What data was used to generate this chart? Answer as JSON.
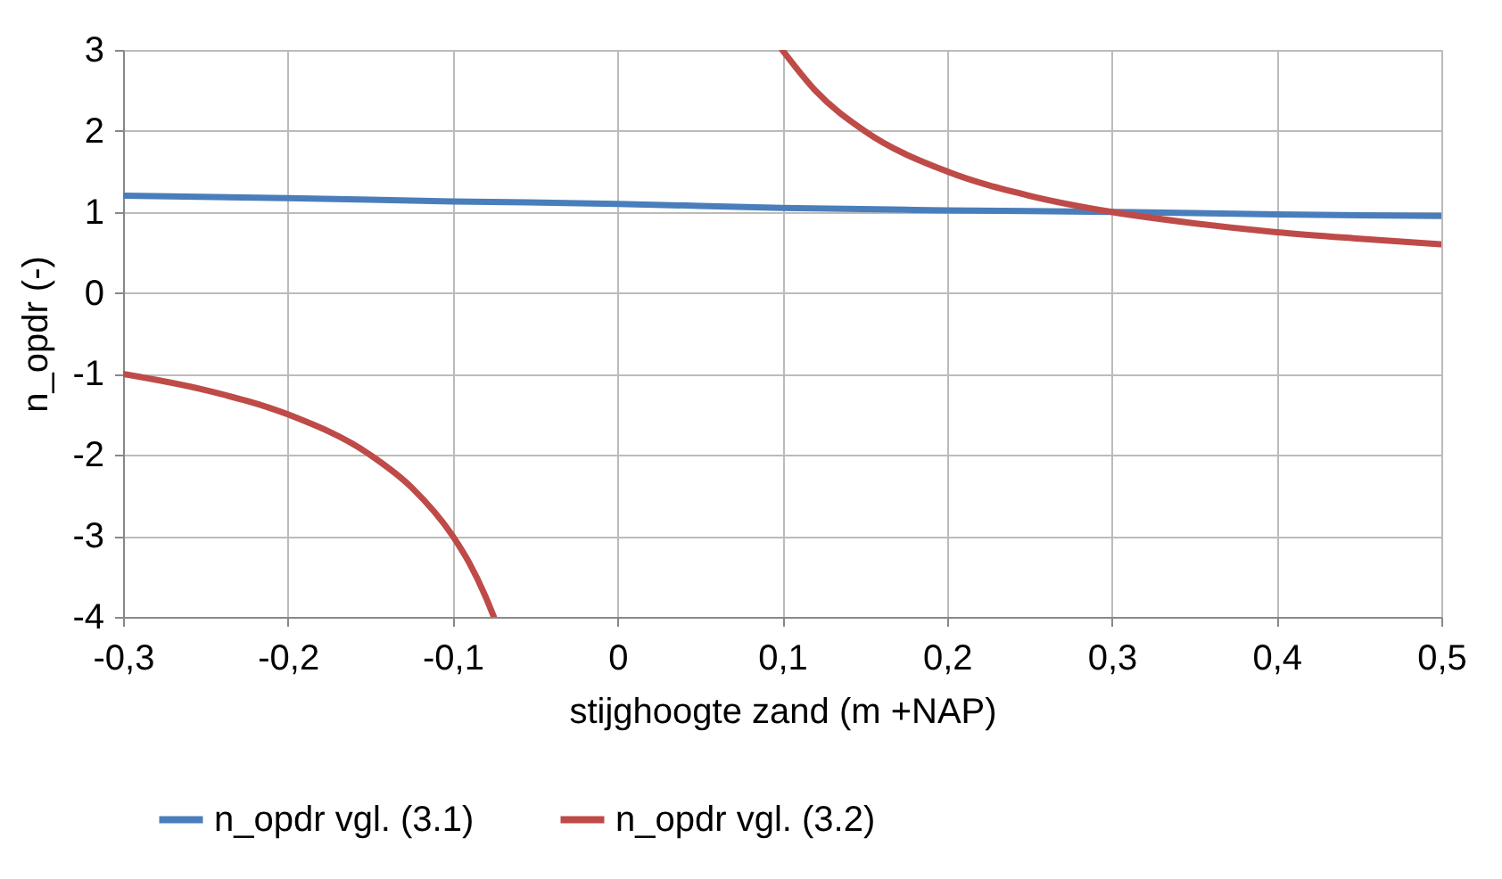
{
  "chart_data": {
    "type": "line",
    "xlabel": "stijghoogte zand (m +NAP)",
    "ylabel": "n_opdr (-)",
    "xlim": [
      -0.3,
      0.5
    ],
    "xticks": [
      {
        "value": -0.3,
        "label": "-0,3"
      },
      {
        "value": -0.2,
        "label": "-0,2"
      },
      {
        "value": -0.1,
        "label": "-0,1"
      },
      0,
      {
        "value": 0.1,
        "label": "0,1"
      },
      {
        "value": 0.2,
        "label": "0,2"
      },
      {
        "value": 0.3,
        "label": "0,3"
      },
      {
        "value": 0.4,
        "label": "0,4"
      },
      {
        "value": 0.5,
        "label": "0,5"
      }
    ],
    "ylim": [
      -4,
      3
    ],
    "yticks": [
      -4,
      -3,
      -2,
      -1,
      0,
      1,
      2,
      3
    ],
    "grid": true,
    "legend": "bottom",
    "marker": "none",
    "line_style": "solid",
    "series": [
      {
        "name": "n_opdr vgl. (3.1)",
        "color": "#4a7ebb",
        "x": [
          -0.3,
          -0.2,
          -0.1,
          0,
          0.1,
          0.2,
          0.3,
          0.4,
          0.5
        ],
        "values": [
          1.2,
          1.17,
          1.13,
          1.1,
          1.05,
          1.02,
          1.0,
          0.97,
          0.95
        ]
      },
      {
        "name": "n_opdr vgl. (3.2)",
        "color": "#be4b48",
        "x": [
          -0.3,
          -0.25,
          -0.2,
          -0.15,
          -0.125,
          -0.1,
          -0.09,
          -0.08,
          -0.075,
          0,
          0.1,
          0.12,
          0.15,
          0.2,
          0.25,
          0.3,
          0.35,
          0.4,
          0.45,
          0.5
        ],
        "values": [
          -1,
          -1.2,
          -1.5,
          -2,
          -2.4,
          -3,
          -3.33,
          -3.75,
          -4,
          null,
          3,
          2.5,
          2,
          1.5,
          1.2,
          1,
          0.86,
          0.75,
          0.67,
          0.6
        ]
      }
    ]
  }
}
